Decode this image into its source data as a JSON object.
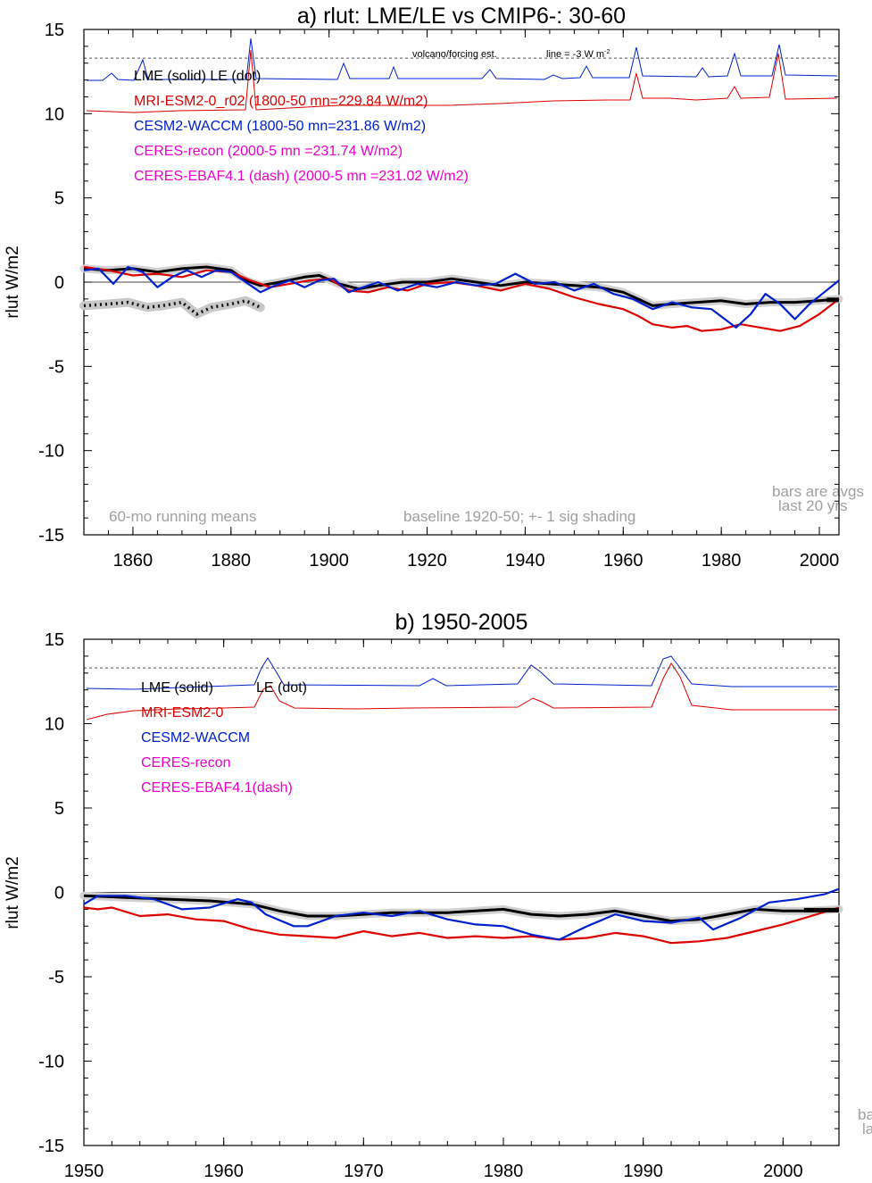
{
  "chart_data": [
    {
      "type": "line",
      "title": "a) rlut: LME/LE vs CMIP6-: 30-60",
      "ylabel": "rlut W/m2",
      "xlim": [
        1850,
        2004
      ],
      "ylim": [
        -15,
        15
      ],
      "xticks": [
        1860,
        1880,
        1900,
        1920,
        1940,
        1960,
        1980,
        2000
      ],
      "yticks": [
        15,
        10,
        5,
        0,
        -5,
        -10,
        -15
      ],
      "grid": false,
      "legend_position": "top-left",
      "legend": [
        {
          "text": "LME (solid)   LE (dot)",
          "color": "#000000"
        },
        {
          "text": "MRI-ESM2-0_r02 (1800-50 mn=229.84 W/m2)",
          "color": "#dd0000"
        },
        {
          "text": "CESM2-WACCM (1800-50 mn=231.86 W/m2)",
          "color": "#0020cc"
        },
        {
          "text": "CERES-recon (2000-5 mn =231.74 W/m2)",
          "color": "#ee00cc"
        },
        {
          "text": "CERES-EBAF4.1 (dash) (2000-5 mn =231.02 W/m2)",
          "color": "#ee00cc"
        }
      ],
      "annotations": {
        "volcano_label": "volcano/forcing est.",
        "line_label": "line = -3 W m",
        "line_label_sup": "-2",
        "running_means": "60-mo running means",
        "baseline": "baseline 1920-50; +- 1 sig shading",
        "bars_line1": "bars are avgs",
        "bars_line2": "last 20 yrs"
      },
      "reference_line": 13.3,
      "series": [
        {
          "name": "LME (solid)",
          "color": "#000000",
          "style": "solid-thick",
          "x": [
            1850,
            1855,
            1860,
            1865,
            1870,
            1875,
            1880,
            1883,
            1886,
            1890,
            1895,
            1898,
            1902,
            1906,
            1910,
            1915,
            1920,
            1925,
            1930,
            1935,
            1940,
            1945,
            1950,
            1955,
            1960,
            1963,
            1966,
            1970,
            1975,
            1980,
            1985,
            1990,
            1995,
            2000,
            2004
          ],
          "y": [
            0.8,
            0.7,
            0.8,
            0.6,
            0.8,
            0.9,
            0.7,
            0.1,
            -0.2,
            0.0,
            0.3,
            0.4,
            -0.1,
            -0.4,
            -0.2,
            0.0,
            0.0,
            0.2,
            0.0,
            -0.2,
            0.0,
            -0.1,
            -0.2,
            -0.3,
            -0.6,
            -1.0,
            -1.4,
            -1.3,
            -1.2,
            -1.1,
            -1.3,
            -1.2,
            -1.2,
            -1.1,
            -1.0
          ]
        },
        {
          "name": "LE (dot)",
          "color": "#000000",
          "style": "dotted-thick",
          "x": [
            1850,
            1855,
            1859,
            1863,
            1866,
            1870,
            1873,
            1876,
            1880,
            1883,
            1886
          ],
          "y": [
            -1.4,
            -1.3,
            -1.2,
            -1.5,
            -1.4,
            -1.2,
            -1.9,
            -1.5,
            -1.3,
            -1.1,
            -1.5
          ]
        },
        {
          "name": "MRI-ESM2-0",
          "color": "#dd0000",
          "style": "solid",
          "x": [
            1850,
            1855,
            1860,
            1865,
            1870,
            1875,
            1880,
            1884,
            1888,
            1892,
            1896,
            1900,
            1904,
            1908,
            1912,
            1916,
            1920,
            1925,
            1930,
            1935,
            1940,
            1945,
            1950,
            1955,
            1960,
            1963,
            1966,
            1970,
            1973,
            1976,
            1980,
            1984,
            1988,
            1992,
            1996,
            2000,
            2004
          ],
          "y": [
            0.9,
            0.7,
            0.4,
            0.5,
            0.3,
            0.7,
            0.6,
            0.1,
            -0.3,
            -0.1,
            0.1,
            0.2,
            -0.5,
            -0.6,
            -0.3,
            -0.5,
            -0.1,
            0.0,
            -0.2,
            -0.5,
            -0.1,
            -0.4,
            -0.9,
            -1.3,
            -1.6,
            -2.0,
            -2.5,
            -2.7,
            -2.6,
            -2.9,
            -2.8,
            -2.5,
            -2.7,
            -2.9,
            -2.6,
            -1.9,
            -1.0
          ]
        },
        {
          "name": "CESM2-WACCM",
          "color": "#0020cc",
          "style": "solid",
          "x": [
            1850,
            1853,
            1856,
            1859,
            1862,
            1865,
            1868,
            1871,
            1874,
            1877,
            1880,
            1883,
            1886,
            1889,
            1892,
            1895,
            1898,
            1901,
            1904,
            1907,
            1910,
            1914,
            1918,
            1922,
            1926,
            1930,
            1934,
            1938,
            1942,
            1946,
            1950,
            1954,
            1958,
            1962,
            1966,
            1970,
            1974,
            1978,
            1983,
            1986,
            1989,
            1992,
            1995,
            1998,
            2001,
            2004
          ],
          "y": [
            0.7,
            0.8,
            -0.1,
            0.9,
            0.6,
            -0.3,
            0.3,
            0.7,
            0.3,
            0.7,
            0.6,
            0.0,
            -0.6,
            -0.2,
            0.1,
            -0.3,
            0.1,
            0.2,
            -0.6,
            -0.3,
            0.0,
            -0.5,
            -0.1,
            -0.3,
            0.0,
            -0.2,
            -0.1,
            0.5,
            -0.1,
            0.0,
            -0.5,
            -0.1,
            -0.7,
            -1.0,
            -1.6,
            -1.2,
            -1.5,
            -1.6,
            -2.7,
            -1.9,
            -0.7,
            -1.3,
            -2.2,
            -1.3,
            -0.6,
            0.1
          ]
        }
      ]
    },
    {
      "type": "line",
      "title": "b) 1950-2005",
      "ylabel": "rlut W/m2",
      "xlim": [
        1950,
        2004
      ],
      "ylim": [
        -15,
        15
      ],
      "xticks": [
        1950,
        1960,
        1970,
        1980,
        1990,
        2000
      ],
      "yticks": [
        15,
        10,
        5,
        0,
        -5,
        -10,
        -15
      ],
      "grid": false,
      "legend_position": "top-left",
      "legend": [
        {
          "text": "LME (solid)",
          "color": "#000000"
        },
        {
          "text": "LE (dot)",
          "color": "#000000"
        },
        {
          "text": "MRI-ESM2-0",
          "color": "#dd0000"
        },
        {
          "text": "CESM2-WACCM",
          "color": "#0020cc"
        },
        {
          "text": "CERES-recon",
          "color": "#ee00cc"
        },
        {
          "text": "CERES-EBAF4.1(dash)",
          "color": "#ee00cc"
        }
      ],
      "annotations": {
        "bars_line1": "ba",
        "bars_line2": "la"
      },
      "reference_line": 13.3,
      "series": [
        {
          "name": "LME (solid)",
          "color": "#000000",
          "style": "solid-thick",
          "x": [
            1950,
            1953,
            1956,
            1959,
            1962,
            1964,
            1966,
            1968,
            1970,
            1972,
            1974,
            1976,
            1978,
            1980,
            1982,
            1984,
            1986,
            1988,
            1990,
            1992,
            1994,
            1996,
            1998,
            2000,
            2002,
            2004
          ],
          "y": [
            -0.2,
            -0.3,
            -0.4,
            -0.5,
            -0.7,
            -1.1,
            -1.4,
            -1.4,
            -1.3,
            -1.2,
            -1.2,
            -1.2,
            -1.1,
            -1.0,
            -1.3,
            -1.4,
            -1.3,
            -1.1,
            -1.4,
            -1.7,
            -1.6,
            -1.3,
            -1.0,
            -1.1,
            -1.1,
            -1.0
          ]
        },
        {
          "name": "MRI-ESM2-0",
          "color": "#dd0000",
          "style": "solid",
          "x": [
            1950,
            1951,
            1952,
            1954,
            1956,
            1958,
            1960,
            1962,
            1964,
            1966,
            1968,
            1970,
            1972,
            1974,
            1976,
            1978,
            1980,
            1982,
            1984,
            1986,
            1988,
            1990,
            1992,
            1994,
            1996,
            1998,
            2000,
            2002,
            2004
          ],
          "y": [
            -0.9,
            -1.0,
            -0.9,
            -1.4,
            -1.3,
            -1.6,
            -1.7,
            -2.2,
            -2.5,
            -2.6,
            -2.7,
            -2.3,
            -2.6,
            -2.4,
            -2.7,
            -2.6,
            -2.7,
            -2.6,
            -2.8,
            -2.7,
            -2.4,
            -2.6,
            -3.0,
            -2.9,
            -2.7,
            -2.3,
            -1.9,
            -1.4,
            -0.9
          ]
        },
        {
          "name": "CESM2-WACCM",
          "color": "#0020cc",
          "style": "solid",
          "x": [
            1950,
            1951,
            1953,
            1955,
            1957,
            1959,
            1961,
            1962,
            1963,
            1965,
            1966,
            1968,
            1970,
            1972,
            1974,
            1976,
            1978,
            1980,
            1982,
            1984,
            1986,
            1988,
            1990,
            1992,
            1994,
            1995,
            1997,
            1999,
            2001,
            2003,
            2004
          ],
          "y": [
            -0.7,
            -0.2,
            -0.2,
            -0.4,
            -1.0,
            -0.9,
            -0.4,
            -0.6,
            -1.3,
            -2.0,
            -2.0,
            -1.4,
            -1.2,
            -1.4,
            -1.1,
            -1.6,
            -1.9,
            -2.0,
            -2.5,
            -2.8,
            -2.0,
            -1.3,
            -1.7,
            -1.8,
            -1.5,
            -2.2,
            -1.5,
            -0.6,
            -0.4,
            -0.1,
            0.2
          ]
        }
      ]
    }
  ]
}
